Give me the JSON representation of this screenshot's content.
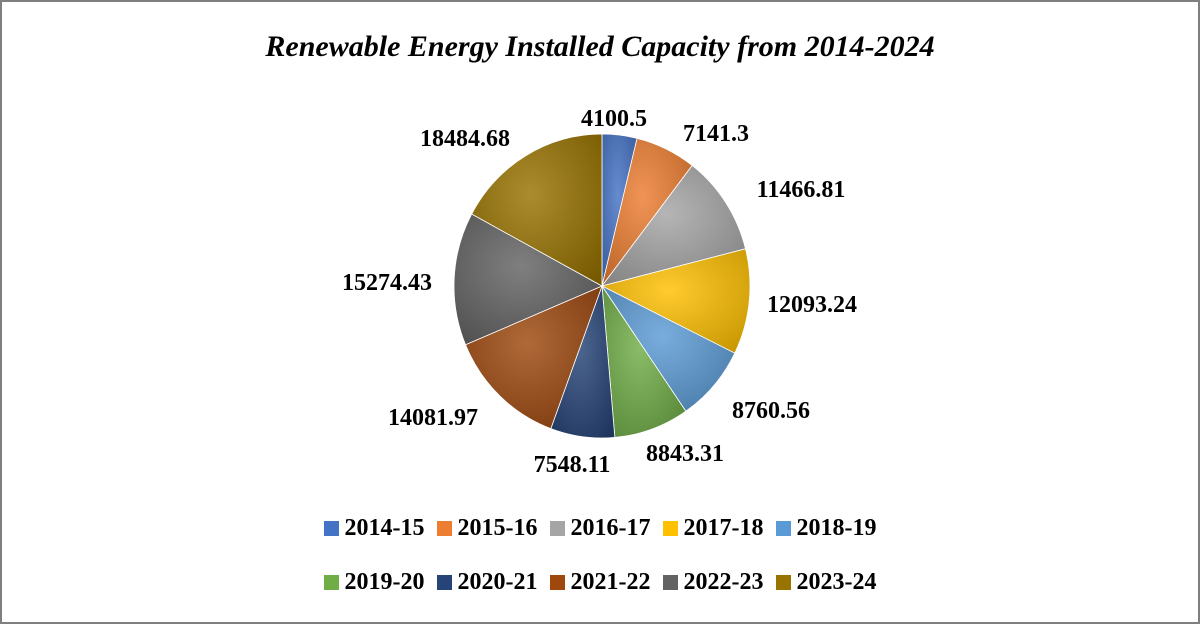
{
  "chart_data": {
    "type": "pie",
    "title": "Renewable Energy Installed Capacity from 2014-2024",
    "categories": [
      "2014-15",
      "2015-16",
      "2016-17",
      "2017-18",
      "2018-19",
      "2019-20",
      "2020-21",
      "2021-22",
      "2022-23",
      "2023-24"
    ],
    "values": [
      4100.5,
      7141.3,
      11466.81,
      12093.24,
      8760.56,
      8843.31,
      7548.11,
      14081.97,
      15274.43,
      18484.68
    ],
    "value_labels": [
      "4100.5",
      "7141.3",
      "11466.81",
      "12093.24",
      "8760.56",
      "8843.31",
      "7548.11",
      "14081.97",
      "15274.43",
      "18484.68"
    ],
    "colors": [
      "#4472C4",
      "#ED7D31",
      "#A5A5A5",
      "#FFC000",
      "#5B9BD5",
      "#70AD47",
      "#264478",
      "#9E480E",
      "#636363",
      "#997300"
    ],
    "start_angle": "12 o'clock",
    "direction": "clockwise",
    "legend_position": "bottom",
    "style": "3D shaded"
  }
}
